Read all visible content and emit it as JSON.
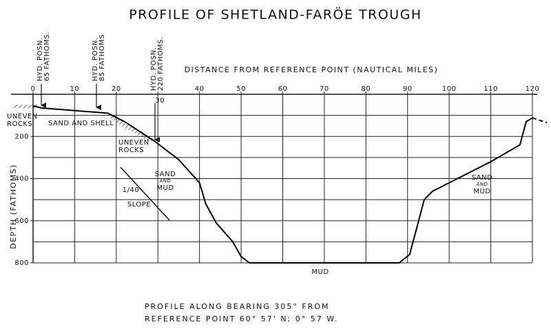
{
  "chart_data": {
    "type": "line",
    "title": "PROFILE OF SHETLAND-FARÖE TROUGH",
    "x_label": "DISTANCE FROM REFERENCE POINT (NAUTICAL MILES)",
    "y_label": "DEPTH (FATHOMS)",
    "x": [
      0,
      2,
      15,
      18,
      22,
      29,
      35,
      40,
      41.5,
      44,
      48,
      50,
      52,
      88,
      90.5,
      92,
      94,
      96,
      110,
      117,
      118.5,
      120
    ],
    "values": [
      55,
      65,
      85,
      90,
      130,
      220,
      310,
      420,
      520,
      610,
      700,
      770,
      800,
      800,
      760,
      650,
      500,
      460,
      320,
      240,
      130,
      112
    ],
    "extension": {
      "x": [
        120,
        123.5
      ],
      "values": [
        112,
        135
      ],
      "dashed": true
    },
    "color": "#000000",
    "xlim": [
      0,
      120
    ],
    "xticks": [
      0,
      10,
      20,
      30,
      40,
      50,
      60,
      70,
      80,
      90,
      100,
      110,
      120
    ],
    "ylim": [
      0,
      800
    ],
    "y_inverted": true,
    "yticks": [
      200,
      400,
      600,
      800
    ],
    "ygrid": [
      0,
      100,
      200,
      300,
      400,
      500,
      600,
      700,
      800
    ],
    "grid": true,
    "annotations": [
      {
        "lines": [
          "HYD. POSN.",
          "65 FATHOMS."
        ]
      },
      {
        "lines": [
          "HYD. POSN.",
          "85 FATHOMS"
        ]
      },
      {
        "lines": [
          "HYD. POSN.",
          "220 FATHOMS."
        ]
      },
      {
        "lines": [
          "UNEVEN",
          "ROCKS"
        ]
      },
      {
        "lines": [
          "SAND AND SHELL"
        ]
      },
      {
        "lines": [
          "UNEVEN",
          "ROCKS"
        ]
      },
      {
        "lines": [
          "SAND",
          "AND",
          "MUD"
        ]
      },
      {
        "lines": [
          "1/40"
        ]
      },
      {
        "lines": [
          "SLOPE"
        ]
      },
      {
        "lines": [
          "MUD"
        ]
      },
      {
        "lines": [
          "SAND",
          "AND",
          "MUD"
        ]
      }
    ],
    "caption": [
      "PROFILE ALONG BEARING 305° FROM",
      "REFERENCE POINT 60° 57' N; 0° 57 W."
    ]
  }
}
